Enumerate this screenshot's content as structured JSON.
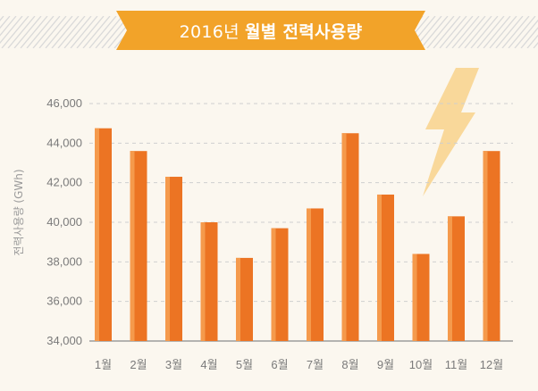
{
  "title": {
    "year": "2016년",
    "main": "월별 전력사용량"
  },
  "colors": {
    "bar_main": "#ec7423",
    "bar_highlight": "#f59a4c",
    "banner": "#f2a329",
    "bolt": "#f9d89a",
    "grid": "#cfcfcf",
    "background": "#fbf7ef"
  },
  "icons": {
    "bolt": "lightning-bolt-icon"
  },
  "chart_data": {
    "type": "bar",
    "title": "2016년 월별 전력사용량",
    "ylabel": "전력사용량 (GWh)",
    "xlabel": "",
    "categories": [
      "1월",
      "2월",
      "3월",
      "4월",
      "5월",
      "6월",
      "7월",
      "8월",
      "9월",
      "10월",
      "11월",
      "12월"
    ],
    "values": [
      44750,
      43600,
      42300,
      40000,
      38200,
      39700,
      40700,
      44500,
      41400,
      38400,
      40300,
      43600
    ],
    "ylim": [
      34000,
      46000
    ],
    "yticks": [
      34000,
      36000,
      38000,
      40000,
      42000,
      44000,
      46000
    ],
    "ytick_labels": [
      "34,000",
      "36,000",
      "38,000",
      "40,000",
      "42,000",
      "44,000",
      "46,000"
    ],
    "grid": true
  }
}
